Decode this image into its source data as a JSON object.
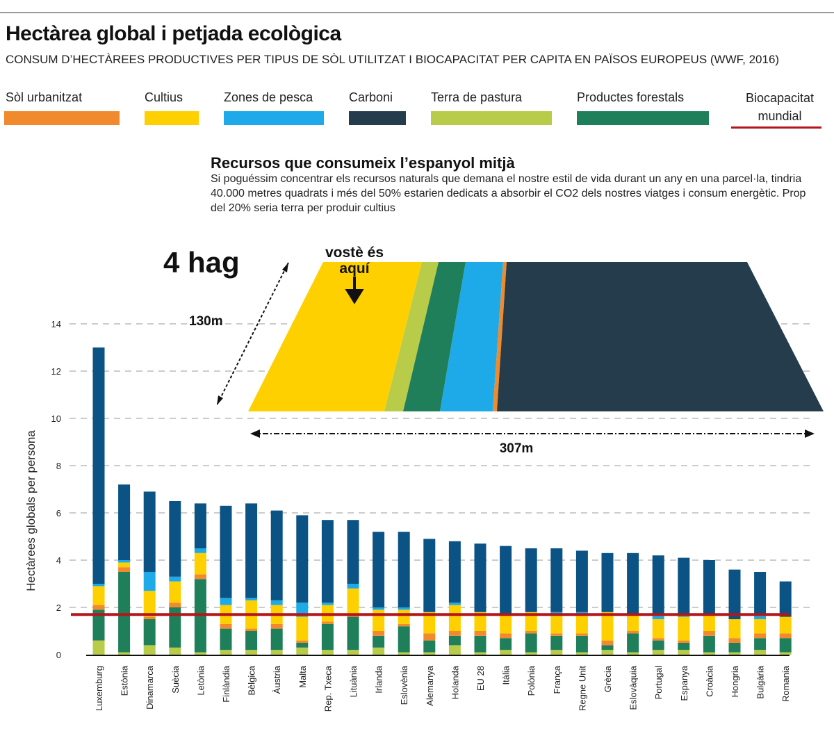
{
  "title": "Hectàrea global i petjada ecològica",
  "subtitle": "CONSUM D’HECTÀREES PRODUCTIVES PER TIPUS DE SÒL UTILITZAT I BIOCAPACITAT PER CAPITA EN PAÏSOS EUROPEUS (WWF, 2016)",
  "legend": [
    {
      "key": "urbanitzat",
      "label": "Sòl urbanitzat",
      "color": "#f08a2c"
    },
    {
      "key": "cultius",
      "label": "Cultius",
      "color": "#ffd000"
    },
    {
      "key": "pesca",
      "label": "Zones de pesca",
      "color": "#1eaae8"
    },
    {
      "key": "carboni",
      "label": "Carboni",
      "color": "#243c4c"
    },
    {
      "key": "pastura",
      "label": "Terra de pastura",
      "color": "#b9cc4a"
    },
    {
      "key": "forestals",
      "label": "Productes forestals",
      "color": "#1f7f5a"
    },
    {
      "key": "biocapacitat",
      "label": "Biocapacitat mundial",
      "color": "#b3161b"
    }
  ],
  "inset": {
    "title": "Recursos que consumeix l’espanyol mitjà",
    "text": "Si poguéssim concentrar els recursos naturals que demana el nostre estil de vida durant un any en una parcel·la, tindria 40.000 metres quadrats i més del 50% estarien dedicats a absorbir el CO2 dels nostres viatges i consum energètic. Prop del 20% seria terra per produir cultius",
    "area_label": "4 hag",
    "you_are_here": "vostè és aquí",
    "depth_label": "130m",
    "width_label": "307m"
  },
  "chart_data": {
    "type": "bar",
    "stacked": true,
    "ylabel": "Hectàrees globals per persona",
    "ylim": [
      0,
      14
    ],
    "yticks": [
      0,
      2,
      4,
      6,
      8,
      10,
      12,
      14
    ],
    "grid": true,
    "bar_color": "#0b5384",
    "categories": [
      "Luxemburg",
      "Estònia",
      "Dinamarca",
      "Suècia",
      "Letònia",
      "Finlàndia",
      "Bèlgica",
      "Àustria",
      "Malta",
      "Rep. Txeca",
      "Lituània",
      "Irlanda",
      "Eslovènia",
      "Alemanya",
      "Holanda",
      "EU 28",
      "Itàlia",
      "Polònia",
      "França",
      "Regne Unit",
      "Grècia",
      "Eslovàquia",
      "Portugal",
      "Espanya",
      "Croàcia",
      "Hongria",
      "Bulgària",
      "Romania"
    ],
    "series": [
      {
        "name": "Terra de pastura",
        "values": [
          0.6,
          0.1,
          0.4,
          0.3,
          0.1,
          0.2,
          0.2,
          0.2,
          0.3,
          0.2,
          0.2,
          0.3,
          0.1,
          0.1,
          0.4,
          0.1,
          0.2,
          0.1,
          0.2,
          0.1,
          0.2,
          0.1,
          0.2,
          0.2,
          0.1,
          0.1,
          0.2,
          0.1
        ]
      },
      {
        "name": "Productes forestals",
        "values": [
          1.3,
          3.4,
          1.1,
          1.7,
          3.1,
          0.9,
          0.8,
          0.9,
          0.2,
          1.1,
          1.4,
          0.5,
          1.1,
          0.5,
          0.4,
          0.7,
          0.5,
          0.8,
          0.6,
          0.7,
          0.2,
          0.8,
          0.4,
          0.3,
          0.7,
          0.4,
          0.5,
          0.6
        ]
      },
      {
        "name": "Sòl urbanitzat",
        "values": [
          0.2,
          0.2,
          0.1,
          0.2,
          0.2,
          0.2,
          0.1,
          0.2,
          0.1,
          0.1,
          0.1,
          0.2,
          0.1,
          0.3,
          0.2,
          0.2,
          0.2,
          0.1,
          0.1,
          0.1,
          0.2,
          0.1,
          0.1,
          0.1,
          0.2,
          0.2,
          0.2,
          0.2
        ]
      },
      {
        "name": "Cultius",
        "values": [
          0.8,
          0.2,
          1.1,
          0.9,
          0.9,
          0.8,
          1.2,
          0.8,
          1.0,
          0.7,
          1.1,
          0.9,
          0.6,
          0.9,
          1.1,
          0.8,
          0.8,
          0.8,
          0.8,
          0.8,
          1.2,
          0.7,
          0.8,
          1.0,
          0.7,
          0.8,
          0.6,
          0.7
        ]
      },
      {
        "name": "Zones de pesca",
        "values": [
          0.1,
          0.1,
          0.8,
          0.2,
          0.2,
          0.3,
          0.1,
          0.2,
          0.6,
          0.1,
          0.2,
          0.1,
          0.1,
          0.0,
          0.1,
          0.0,
          0.0,
          0.0,
          0.1,
          0.1,
          0.0,
          0.0,
          0.2,
          0.1,
          0.0,
          0.0,
          0.2,
          0.0
        ]
      },
      {
        "name": "Carboni",
        "values": [
          10.0,
          3.2,
          3.4,
          3.2,
          1.9,
          3.9,
          4.0,
          3.8,
          3.7,
          3.5,
          2.7,
          3.2,
          3.2,
          3.1,
          2.6,
          2.9,
          2.9,
          2.7,
          2.7,
          2.6,
          2.5,
          2.6,
          2.5,
          2.4,
          2.3,
          2.1,
          1.8,
          1.5
        ]
      }
    ],
    "biocapacitat_mundial": 1.7
  }
}
